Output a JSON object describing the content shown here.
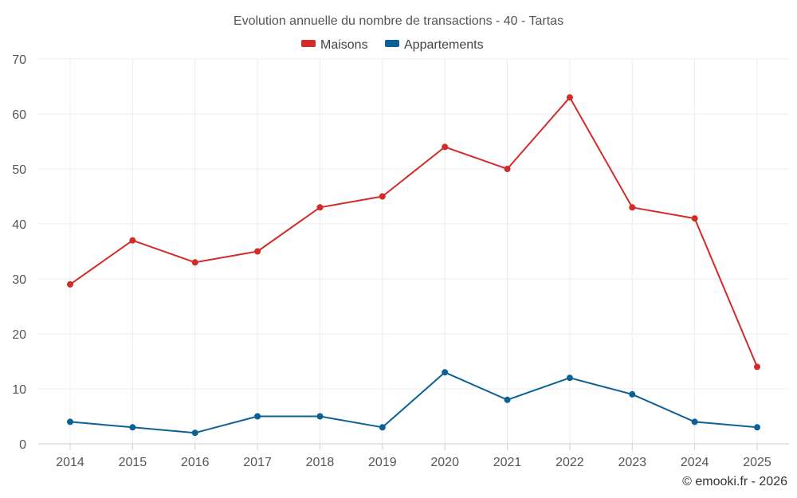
{
  "chart_data": {
    "type": "line",
    "title": "Evolution annuelle du nombre de transactions - 40 - Tartas",
    "categories": [
      "2014",
      "2015",
      "2016",
      "2017",
      "2018",
      "2019",
      "2020",
      "2021",
      "2022",
      "2023",
      "2024",
      "2025"
    ],
    "series": [
      {
        "name": "Maisons",
        "color": "#d32a2a",
        "values": [
          29,
          37,
          33,
          35,
          43,
          45,
          54,
          50,
          63,
          43,
          41,
          14
        ]
      },
      {
        "name": "Appartements",
        "color": "#0b6196",
        "values": [
          4,
          3,
          2,
          5,
          5,
          3,
          13,
          8,
          12,
          9,
          4,
          3
        ]
      }
    ],
    "yticks": [
      "0",
      "10",
      "20",
      "30",
      "40",
      "50",
      "60",
      "70"
    ],
    "ylim": [
      0,
      70
    ],
    "xlabel": "",
    "ylabel": "",
    "grid": true,
    "legend_position": "top-center"
  },
  "credit": "© emooki.fr - 2026"
}
